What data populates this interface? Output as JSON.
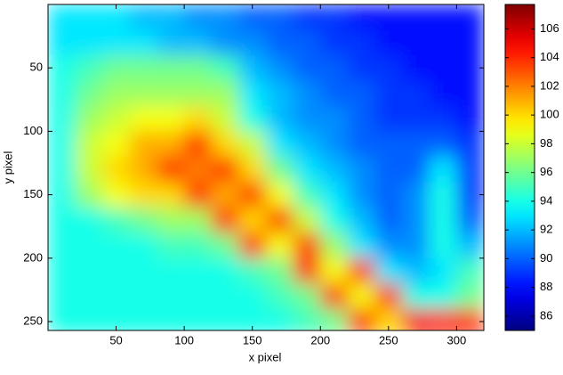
{
  "chart_data": {
    "type": "heatmap",
    "xlabel": "x pixel",
    "ylabel": "y pixel",
    "colormap": "jet",
    "yaxis_reversed": true,
    "xlim": [
      0,
      320
    ],
    "ylim": [
      0,
      257
    ],
    "xticks": [
      50,
      100,
      150,
      200,
      250,
      300
    ],
    "yticks": [
      50,
      100,
      150,
      200,
      250
    ],
    "clim": [
      85,
      107.7
    ],
    "cticks": [
      86,
      88,
      90,
      92,
      94,
      96,
      98,
      100,
      102,
      104,
      106
    ],
    "x": [
      10,
      30,
      50,
      70,
      90,
      110,
      130,
      150,
      170,
      190,
      210,
      230,
      250,
      270,
      290,
      310
    ],
    "y": [
      10,
      30,
      50,
      70,
      90,
      110,
      130,
      150,
      170,
      190,
      210,
      230,
      250
    ],
    "z": [
      [
        93,
        93,
        93,
        92,
        92,
        91,
        91,
        90,
        90,
        89,
        89,
        88,
        88,
        88,
        88,
        88
      ],
      [
        93,
        93,
        93,
        93,
        92,
        92,
        91,
        91,
        90,
        90,
        89,
        89,
        88,
        88,
        88,
        88
      ],
      [
        94,
        95,
        96,
        96,
        96,
        96,
        95,
        92,
        91,
        90,
        90,
        89,
        89,
        88,
        88,
        88
      ],
      [
        94,
        96,
        97,
        97,
        97,
        97,
        97,
        93,
        92,
        91,
        90,
        90,
        89,
        89,
        88,
        88
      ],
      [
        94,
        97,
        98,
        99,
        99,
        100,
        98,
        94,
        92,
        91,
        91,
        90,
        89,
        89,
        89,
        88
      ],
      [
        94,
        98,
        99,
        101,
        101,
        104,
        100,
        98,
        93,
        92,
        91,
        90,
        90,
        90,
        90,
        89
      ],
      [
        94,
        98,
        100,
        101,
        104,
        102,
        104,
        100,
        96,
        93,
        92,
        91,
        90,
        90,
        93,
        89
      ],
      [
        94,
        97,
        99,
        100,
        100,
        104,
        101,
        104,
        99,
        95,
        93,
        91,
        90,
        91,
        94,
        89
      ],
      [
        94,
        94,
        95,
        96,
        97,
        97,
        104,
        100,
        104,
        98,
        94,
        92,
        90,
        91,
        94,
        90
      ],
      [
        94,
        94,
        94,
        94,
        95,
        95,
        96,
        104,
        99,
        104,
        97,
        93,
        91,
        91,
        94,
        92
      ],
      [
        94,
        94,
        94,
        94,
        94,
        94,
        94,
        95,
        96,
        104,
        99,
        104,
        93,
        92,
        93,
        95
      ],
      [
        94,
        94,
        94,
        94,
        94,
        94,
        94,
        94,
        95,
        96,
        104,
        99,
        104,
        94,
        94,
        96
      ],
      [
        94,
        94,
        94,
        94,
        94,
        94,
        94,
        94,
        94,
        95,
        96,
        104,
        100,
        105,
        104,
        104
      ]
    ]
  }
}
